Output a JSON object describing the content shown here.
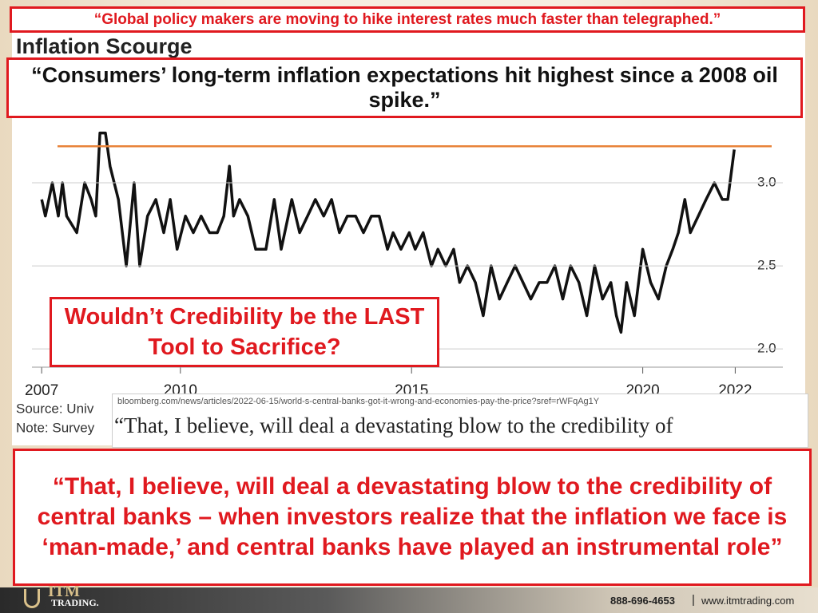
{
  "slide": {
    "headline": "“Global policy makers are moving to hike interest rates much faster than telegraphed.”",
    "quote_box": "“Consumers’ long-term inflation expectations hit highest since a 2008 oil spike.”",
    "question": "Wouldn’t Credibility be the LAST Tool to Sacrifice?",
    "main_quote": "“That, I believe, will deal a devastating blow to the credibility of central banks – when investors realize that the inflation we face is ‘man-made,’ and central banks have played an instrumental role”",
    "article_url": "bloomberg.com/news/articles/2022-06-15/world-s-central-banks-got-it-wrong-and-economies-pay-the-price?sref=rWFqAg1Y",
    "article_text": "“That, I believe, will deal a devastating blow to the credibility of",
    "logo_top": "ITM",
    "logo_bottom": "TRADING.",
    "phone": "888-696-4653",
    "website": "www.itmtrading.com"
  },
  "chart_data": {
    "type": "line",
    "title": "Inflation Scourge",
    "source": "Source: Univ",
    "note": "Note: Survey",
    "x": [
      2007.0,
      2007.08,
      2007.23,
      2007.36,
      2007.45,
      2007.54,
      2007.76,
      2007.93,
      2008.07,
      2008.17,
      2008.26,
      2008.38,
      2008.48,
      2008.66,
      2008.83,
      2009.0,
      2009.12,
      2009.29,
      2009.47,
      2009.64,
      2009.78,
      2009.93,
      2010.11,
      2010.28,
      2010.45,
      2010.63,
      2010.8,
      2010.94,
      2011.06,
      2011.15,
      2011.28,
      2011.46,
      2011.63,
      2011.85,
      2012.03,
      2012.18,
      2012.41,
      2012.58,
      2012.75,
      2012.92,
      2013.1,
      2013.27,
      2013.44,
      2013.61,
      2013.79,
      2013.96,
      2014.13,
      2014.3,
      2014.48,
      2014.6,
      2014.77,
      2014.95,
      2015.08,
      2015.25,
      2015.43,
      2015.57,
      2015.74,
      2015.91,
      2016.04,
      2016.21,
      2016.38,
      2016.55,
      2016.72,
      2016.9,
      2017.07,
      2017.24,
      2017.41,
      2017.58,
      2017.76,
      2017.93,
      2018.1,
      2018.27,
      2018.44,
      2018.62,
      2018.79,
      2018.96,
      2019.13,
      2019.31,
      2019.43,
      2019.53,
      2019.65,
      2019.82,
      2020.0,
      2020.17,
      2020.34,
      2020.51,
      2020.65,
      2020.77,
      2020.91,
      2021.03,
      2021.2,
      2021.37,
      2021.55,
      2021.72,
      2021.84,
      2021.98
    ],
    "values": [
      2.9,
      2.8,
      3.0,
      2.8,
      3.0,
      2.8,
      2.7,
      3.0,
      2.9,
      2.8,
      3.3,
      3.3,
      3.1,
      2.9,
      2.5,
      3.0,
      2.5,
      2.8,
      2.9,
      2.7,
      2.9,
      2.6,
      2.8,
      2.7,
      2.8,
      2.7,
      2.7,
      2.8,
      3.1,
      2.8,
      2.9,
      2.8,
      2.6,
      2.6,
      2.9,
      2.6,
      2.9,
      2.7,
      2.8,
      2.9,
      2.8,
      2.9,
      2.7,
      2.8,
      2.8,
      2.7,
      2.8,
      2.8,
      2.6,
      2.7,
      2.6,
      2.7,
      2.6,
      2.7,
      2.5,
      2.6,
      2.5,
      2.6,
      2.4,
      2.5,
      2.4,
      2.2,
      2.5,
      2.3,
      2.4,
      2.5,
      2.4,
      2.3,
      2.4,
      2.4,
      2.5,
      2.3,
      2.5,
      2.4,
      2.2,
      2.5,
      2.3,
      2.4,
      2.2,
      2.1,
      2.4,
      2.2,
      2.6,
      2.4,
      2.3,
      2.5,
      2.6,
      2.7,
      2.9,
      2.7,
      2.8,
      2.9,
      3.0,
      2.9,
      2.9,
      3.2
    ],
    "color": "#111111",
    "reference_line": {
      "value": 3.22,
      "color": "#e8833a"
    },
    "xlim": [
      2006.79,
      2023.03
    ],
    "xticks": [
      2007,
      2010,
      2015,
      2020,
      2022
    ],
    "ylim": [
      1.89,
      3.38
    ],
    "yticks": [
      {
        "value": 2,
        "label": "2.0"
      },
      {
        "value": 2.5,
        "label": "2.5"
      },
      {
        "value": 3,
        "label": "3.0"
      }
    ],
    "grid": true
  }
}
